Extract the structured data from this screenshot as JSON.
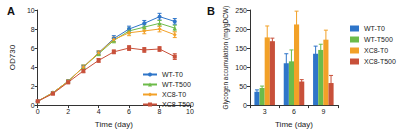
{
  "chart_data": [
    {
      "type": "line",
      "title": "A",
      "x_label": "Time (day)",
      "y_label": "OD730",
      "x": [
        0,
        1,
        2,
        3,
        4,
        5,
        6,
        7,
        8,
        9
      ],
      "xlim": [
        0,
        10
      ],
      "xticks": [
        0,
        2,
        4,
        6,
        8,
        10
      ],
      "ylim": [
        0,
        10
      ],
      "yticks": [
        0,
        2,
        4,
        6,
        8,
        10
      ],
      "grid": false,
      "legend": "lower right",
      "series": [
        {
          "name": "WT-T0",
          "color": "#2e75c9",
          "marker": "circle",
          "values": [
            0.4,
            1.3,
            2.5,
            4.0,
            5.5,
            7.0,
            8.0,
            8.6,
            9.3,
            8.8
          ],
          "errors": [
            0.05,
            0.1,
            0.15,
            0.2,
            0.2,
            0.3,
            0.3,
            0.3,
            0.35,
            0.3
          ]
        },
        {
          "name": "WT-T500",
          "color": "#6cbb4a",
          "marker": "triangle",
          "values": [
            0.4,
            1.3,
            2.5,
            4.0,
            5.4,
            6.8,
            7.8,
            8.2,
            8.6,
            8.1
          ],
          "errors": [
            0.05,
            0.1,
            0.15,
            0.2,
            0.2,
            0.25,
            0.3,
            0.3,
            0.3,
            0.3
          ]
        },
        {
          "name": "XC8-T0",
          "color": "#f2a128",
          "marker": "diamond",
          "values": [
            0.4,
            1.3,
            2.5,
            4.0,
            5.5,
            6.9,
            7.6,
            7.8,
            8.0,
            7.4
          ],
          "errors": [
            0.05,
            0.1,
            0.15,
            0.2,
            0.2,
            0.25,
            0.3,
            0.3,
            0.3,
            0.3
          ]
        },
        {
          "name": "XC8-T500",
          "color": "#c8503a",
          "marker": "rect",
          "values": [
            0.4,
            1.2,
            2.4,
            3.6,
            4.7,
            5.6,
            6.0,
            5.8,
            5.9,
            5.1
          ],
          "errors": [
            0.05,
            0.1,
            0.15,
            0.2,
            0.2,
            0.2,
            0.25,
            0.25,
            0.25,
            0.3
          ]
        }
      ]
    },
    {
      "type": "bar",
      "title": "B",
      "x_label": "Time (day)",
      "y_label": "Glycogen accumulation (mg/gDCW)",
      "categories": [
        "3",
        "6",
        "9"
      ],
      "ylim": [
        0,
        250
      ],
      "yticks": [
        0,
        50,
        100,
        150,
        200,
        250
      ],
      "grid": false,
      "legend": "right",
      "series": [
        {
          "name": "WT-T0",
          "color": "#2e75c9",
          "values": [
            35,
            110,
            135
          ],
          "errors": [
            5,
            25,
            20
          ]
        },
        {
          "name": "WT-T500",
          "color": "#6cbb4a",
          "values": [
            45,
            115,
            145
          ],
          "errors": [
            5,
            30,
            15
          ]
        },
        {
          "name": "XC8-T0",
          "color": "#f2a128",
          "values": [
            178,
            212,
            172
          ],
          "errors": [
            30,
            35,
            25
          ]
        },
        {
          "name": "XC8-T500",
          "color": "#c8503a",
          "values": [
            168,
            62,
            58
          ],
          "errors": [
            8,
            5,
            20
          ]
        }
      ]
    }
  ]
}
